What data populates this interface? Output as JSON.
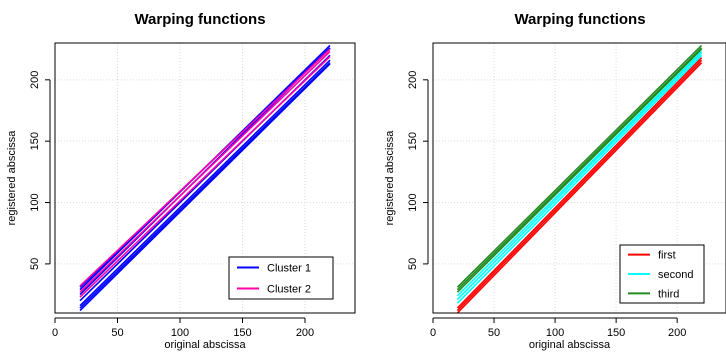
{
  "chart_data": [
    {
      "type": "line",
      "title": "Warping functions",
      "xlabel": "original abscissa",
      "ylabel": "registered abscissa",
      "xlim": [
        0,
        240
      ],
      "ylim": [
        10,
        230
      ],
      "xticks": [
        0,
        50,
        100,
        150,
        200
      ],
      "yticks": [
        50,
        100,
        150,
        200
      ],
      "grid": true,
      "legend_position": "bottom-right",
      "legend": [
        {
          "label": "Cluster 1",
          "color": "#0000ff"
        },
        {
          "label": "Cluster 2",
          "color": "#ff00aa"
        }
      ],
      "x": [
        20,
        220
      ],
      "series": [
        {
          "values": [
            20,
            220
          ],
          "color": "#0000ff"
        },
        {
          "values": [
            16,
            216
          ],
          "color": "#0000ff"
        },
        {
          "values": [
            12,
            213
          ],
          "color": "#0000ff"
        },
        {
          "values": [
            25,
            226
          ],
          "color": "#0000ff"
        },
        {
          "values": [
            29,
            228
          ],
          "color": "#0000ff"
        },
        {
          "values": [
            31,
            226
          ],
          "color": "#0000ff"
        },
        {
          "values": [
            14,
            214
          ],
          "color": "#0000ff"
        },
        {
          "values": [
            27,
            223
          ],
          "color": "#ff00aa"
        },
        {
          "values": [
            23,
            219
          ],
          "color": "#ff00aa"
        },
        {
          "values": [
            32,
            225
          ],
          "color": "#ff00aa"
        }
      ]
    },
    {
      "type": "line",
      "title": "Warping functions",
      "xlabel": "original abscissa",
      "ylabel": "registered abscissa",
      "xlim": [
        0,
        240
      ],
      "ylim": [
        10,
        230
      ],
      "xticks": [
        0,
        50,
        100,
        150,
        200
      ],
      "yticks": [
        50,
        100,
        150,
        200
      ],
      "grid": true,
      "legend_position": "bottom-right",
      "legend": [
        {
          "label": "first",
          "color": "#ff0000"
        },
        {
          "label": "second",
          "color": "#00ffff"
        },
        {
          "label": "third",
          "color": "#228b22"
        }
      ],
      "x": [
        20,
        220
      ],
      "series": [
        {
          "values": [
            10,
            214
          ],
          "color": "#ff0000"
        },
        {
          "values": [
            12,
            216
          ],
          "color": "#ff0000"
        },
        {
          "values": [
            14,
            218
          ],
          "color": "#ff0000"
        },
        {
          "values": [
            18,
            220
          ],
          "color": "#00ffff"
        },
        {
          "values": [
            21,
            222
          ],
          "color": "#00ffff"
        },
        {
          "values": [
            24,
            223
          ],
          "color": "#00ffff"
        },
        {
          "values": [
            27,
            225
          ],
          "color": "#228b22"
        },
        {
          "values": [
            29,
            226
          ],
          "color": "#228b22"
        },
        {
          "values": [
            31,
            228
          ],
          "color": "#228b22"
        }
      ]
    }
  ]
}
